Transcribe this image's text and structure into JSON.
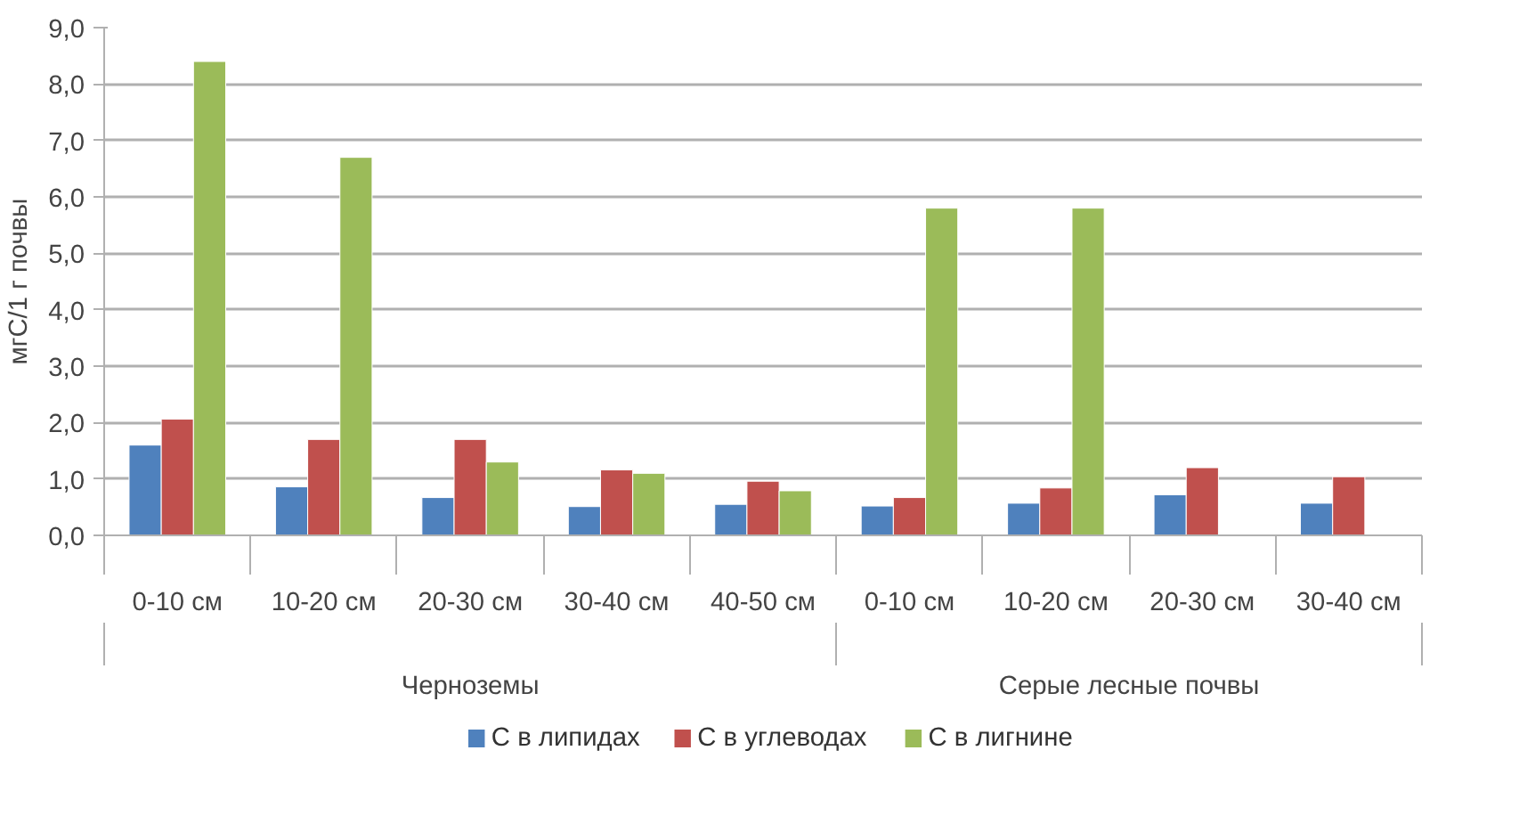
{
  "chart_data": {
    "type": "bar",
    "ylabel": "мгС/1 г почвы",
    "categories": [
      "0-10 см",
      "10-20 см",
      "20-30 см",
      "30-40 см",
      "40-50 см",
      "0-10 см",
      "10-20 см",
      "20-30 см",
      "30-40 см"
    ],
    "annotations": [
      "Черноземы",
      "Серые лесные почвы"
    ],
    "series": [
      {
        "name": "С в липидах",
        "color": "#4f81bd",
        "values": [
          1.6,
          0.86,
          0.67,
          0.51,
          0.55,
          0.52,
          0.57,
          0.72,
          0.57
        ]
      },
      {
        "name": "С в углеводах",
        "color": "#c0504d",
        "values": [
          2.06,
          1.7,
          1.7,
          1.16,
          0.96,
          0.67,
          0.84,
          1.2,
          1.04
        ]
      },
      {
        "name": "С в лигнине",
        "color": "#9bbb59",
        "values": [
          8.4,
          6.7,
          1.3,
          1.1,
          0.79,
          5.8,
          5.8,
          null,
          null
        ]
      }
    ],
    "ylim": [
      0,
      9
    ],
    "yticks": [
      {
        "value": 0,
        "label": "0,0"
      },
      {
        "value": 1,
        "label": "1,0"
      },
      {
        "value": 2,
        "label": "2,0"
      },
      {
        "value": 3,
        "label": "3,0"
      },
      {
        "value": 4,
        "label": "4,0"
      },
      {
        "value": 5,
        "label": "5,0"
      },
      {
        "value": 6,
        "label": "6,0"
      },
      {
        "value": 7,
        "label": "7,0"
      },
      {
        "value": 8,
        "label": "8,0"
      },
      {
        "value": 9,
        "label": "9,0"
      }
    ],
    "grid": "y",
    "legend": "bottom"
  }
}
